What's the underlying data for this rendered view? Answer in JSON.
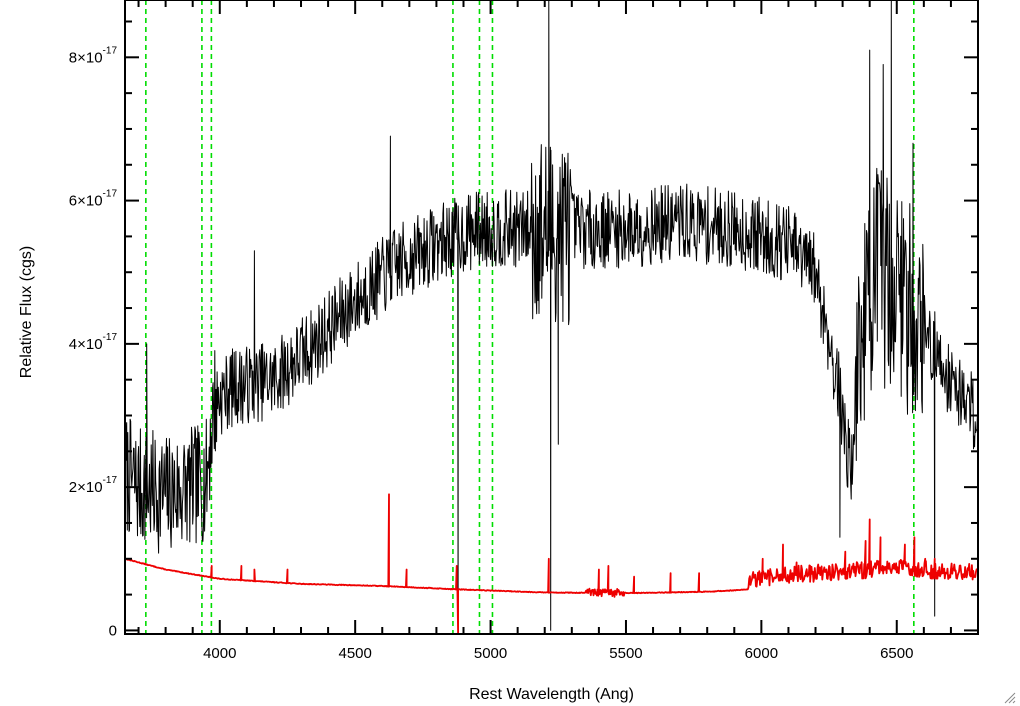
{
  "chart_data": {
    "type": "line",
    "xlabel": "Rest Wavelength (Ang)",
    "ylabel": "Relative Flux (cgs)",
    "xlim": [
      3650,
      6800
    ],
    "ylim": [
      -5e-19,
      8.8e-17
    ],
    "x_ticks": [
      {
        "value": 4000,
        "label": "4000"
      },
      {
        "value": 4500,
        "label": "4500"
      },
      {
        "value": 5000,
        "label": "5000"
      },
      {
        "value": 5500,
        "label": "5500"
      },
      {
        "value": 6000,
        "label": "6000"
      },
      {
        "value": 6500,
        "label": "6500"
      }
    ],
    "y_ticks": [
      {
        "value": 0,
        "mantissa": "0",
        "exponent": ""
      },
      {
        "value": 2e-17,
        "mantissa": "2×10",
        "exponent": "-17"
      },
      {
        "value": 4e-17,
        "mantissa": "4×10",
        "exponent": "-17"
      },
      {
        "value": 6e-17,
        "mantissa": "6×10",
        "exponent": "-17"
      },
      {
        "value": 8e-17,
        "mantissa": "8×10",
        "exponent": "-17"
      }
    ],
    "x_minor_step": 100,
    "y_minor_step": 5e-18,
    "reference_lines": [
      3727,
      3934,
      3969,
      4861,
      4959,
      5007,
      6563
    ],
    "reference_line_color": "#00dd00",
    "series": [
      {
        "color": "#000000",
        "noise_seed": 7,
        "points": [
          [
            3650,
            2.2e-17
          ],
          [
            3700,
            2e-17
          ],
          [
            3800,
            1.9e-17
          ],
          [
            3900,
            2e-17
          ],
          [
            3950,
            2.1e-17
          ],
          [
            3980,
            3.2e-17
          ],
          [
            4050,
            3.4e-17
          ],
          [
            4200,
            3.5e-17
          ],
          [
            4350,
            4e-17
          ],
          [
            4500,
            4.6e-17
          ],
          [
            4650,
            5.1e-17
          ],
          [
            4800,
            5.4e-17
          ],
          [
            4950,
            5.6e-17
          ],
          [
            5100,
            5.6e-17
          ],
          [
            5300,
            5.6e-17
          ],
          [
            5500,
            5.6e-17
          ],
          [
            5700,
            5.7e-17
          ],
          [
            5900,
            5.6e-17
          ],
          [
            6100,
            5.4e-17
          ],
          [
            6200,
            5e-17
          ],
          [
            6280,
            3.5e-17
          ],
          [
            6330,
            2.2e-17
          ],
          [
            6360,
            4e-17
          ],
          [
            6420,
            5e-17
          ],
          [
            6500,
            4.8e-17
          ],
          [
            6600,
            4.2e-17
          ],
          [
            6700,
            3.5e-17
          ],
          [
            6800,
            3e-17
          ]
        ],
        "spikes": [
          [
            3730,
            4e-17
          ],
          [
            4128,
            5.3e-17
          ],
          [
            4630,
            6.9e-17
          ],
          [
            4880,
            0.0
          ],
          [
            5215,
            8.8e-17
          ],
          [
            5222,
            0.0
          ],
          [
            5250,
            2.6e-17
          ],
          [
            6290,
            1.3e-17
          ],
          [
            6400,
            8.1e-17
          ],
          [
            6450,
            7.9e-17
          ],
          [
            6480,
            8.8e-17
          ],
          [
            6560,
            6.8e-17
          ],
          [
            6640,
            2e-18
          ]
        ]
      },
      {
        "color": "#ee0000",
        "noise_seed": 13,
        "points": [
          [
            3650,
            1e-17
          ],
          [
            3800,
            8.5e-18
          ],
          [
            4000,
            7.2e-18
          ],
          [
            4300,
            6.5e-18
          ],
          [
            4600,
            6.2e-18
          ],
          [
            4900,
            5.7e-18
          ],
          [
            5200,
            5.3e-18
          ],
          [
            5500,
            5.2e-18
          ],
          [
            5800,
            5.4e-18
          ],
          [
            5950,
            5.7e-18
          ],
          [
            6100,
            6.6e-18
          ],
          [
            6300,
            7e-18
          ],
          [
            6500,
            7.6e-18
          ],
          [
            6700,
            7e-18
          ],
          [
            6800,
            7e-18
          ]
        ],
        "spikes": [
          [
            3970,
            9e-18
          ],
          [
            4080,
            9e-18
          ],
          [
            4128,
            8.5e-18
          ],
          [
            4250,
            8.5e-18
          ],
          [
            4625,
            1.9e-17
          ],
          [
            4690,
            8.5e-18
          ],
          [
            4875,
            9e-18
          ],
          [
            4880,
            -5e-19
          ],
          [
            5215,
            1e-17
          ],
          [
            5400,
            8.5e-18
          ],
          [
            5435,
            9e-18
          ],
          [
            5530,
            7.5e-18
          ],
          [
            5665,
            8e-18
          ],
          [
            5770,
            8e-18
          ],
          [
            6005,
            1e-17
          ],
          [
            6080,
            1.2e-17
          ],
          [
            6130,
            9.5e-18
          ],
          [
            6180,
            9e-18
          ],
          [
            6250,
            9e-18
          ],
          [
            6310,
            1.1e-17
          ],
          [
            6385,
            1.25e-17
          ],
          [
            6400,
            1.55e-17
          ],
          [
            6440,
            1.3e-17
          ],
          [
            6530,
            1.2e-17
          ],
          [
            6565,
            1.3e-17
          ],
          [
            6605,
            1e-17
          ],
          [
            6640,
            1e-17
          ],
          [
            6795,
            8.5e-18
          ]
        ]
      }
    ]
  }
}
